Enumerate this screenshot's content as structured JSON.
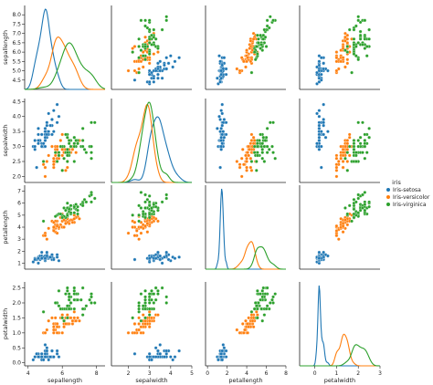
{
  "chart_data": {
    "type": "scatter",
    "variables": [
      {
        "name": "sepallength",
        "min": 4.0,
        "max": 8.5,
        "ticks": [
          4,
          6,
          8
        ],
        "row_ticks": [
          4.5,
          5.0,
          5.5,
          6.0,
          6.5,
          7.0,
          7.5,
          8.0
        ]
      },
      {
        "name": "sepalwidth",
        "min": 1.8,
        "max": 4.6,
        "ticks": [
          2,
          3,
          4,
          5
        ],
        "row_ticks": [
          2.0,
          2.5,
          3.0,
          3.5,
          4.0,
          4.5
        ]
      },
      {
        "name": "petallength",
        "min": 0.5,
        "max": 7.5,
        "ticks": [
          0,
          2,
          4,
          6,
          8
        ],
        "row_ticks": [
          1,
          2,
          3,
          4,
          5,
          6,
          7
        ]
      },
      {
        "name": "petalwidth",
        "min": -0.1,
        "max": 2.7,
        "ticks": [
          0,
          1,
          2,
          3
        ],
        "row_ticks": [
          0.0,
          0.5,
          1.0,
          1.5,
          2.0,
          2.5
        ]
      }
    ],
    "x_ranges": [
      [
        3.8,
        8.5
      ],
      [
        1.2,
        5.0
      ],
      [
        -0.2,
        8.0
      ],
      [
        -0.7,
        3.0
      ]
    ],
    "legend": {
      "title": "iris",
      "placement": "right",
      "entries": [
        "Iris-setosa",
        "Iris-versicolor",
        "Iris-virginica"
      ]
    },
    "colors": [
      "#1f77b4",
      "#ff7f0e",
      "#2ca02c"
    ],
    "series": [
      {
        "name": "Iris-setosa",
        "points": [
          [
            5.1,
            3.5,
            1.4,
            0.2
          ],
          [
            4.9,
            3.0,
            1.4,
            0.2
          ],
          [
            4.7,
            3.2,
            1.3,
            0.2
          ],
          [
            4.6,
            3.1,
            1.5,
            0.2
          ],
          [
            5.0,
            3.6,
            1.4,
            0.2
          ],
          [
            5.4,
            3.9,
            1.7,
            0.4
          ],
          [
            4.6,
            3.4,
            1.4,
            0.3
          ],
          [
            5.0,
            3.4,
            1.5,
            0.2
          ],
          [
            4.4,
            2.9,
            1.4,
            0.2
          ],
          [
            4.9,
            3.1,
            1.5,
            0.1
          ],
          [
            5.4,
            3.7,
            1.5,
            0.2
          ],
          [
            4.8,
            3.4,
            1.6,
            0.2
          ],
          [
            4.8,
            3.0,
            1.4,
            0.1
          ],
          [
            4.3,
            3.0,
            1.1,
            0.1
          ],
          [
            5.8,
            4.0,
            1.2,
            0.2
          ],
          [
            5.7,
            4.4,
            1.5,
            0.4
          ],
          [
            5.4,
            3.9,
            1.3,
            0.4
          ],
          [
            5.1,
            3.5,
            1.4,
            0.3
          ],
          [
            5.7,
            3.8,
            1.7,
            0.3
          ],
          [
            5.1,
            3.8,
            1.5,
            0.3
          ],
          [
            5.4,
            3.4,
            1.7,
            0.2
          ],
          [
            5.1,
            3.7,
            1.5,
            0.4
          ],
          [
            4.6,
            3.6,
            1.0,
            0.2
          ],
          [
            5.1,
            3.3,
            1.7,
            0.5
          ],
          [
            4.8,
            3.4,
            1.9,
            0.2
          ],
          [
            5.0,
            3.0,
            1.6,
            0.2
          ],
          [
            5.0,
            3.4,
            1.6,
            0.4
          ],
          [
            5.2,
            3.5,
            1.5,
            0.2
          ],
          [
            5.2,
            3.4,
            1.4,
            0.2
          ],
          [
            4.7,
            3.2,
            1.6,
            0.2
          ],
          [
            4.8,
            3.1,
            1.6,
            0.2
          ],
          [
            5.4,
            3.4,
            1.5,
            0.4
          ],
          [
            5.2,
            4.1,
            1.5,
            0.1
          ],
          [
            5.5,
            4.2,
            1.4,
            0.2
          ],
          [
            4.9,
            3.1,
            1.5,
            0.1
          ],
          [
            5.0,
            3.2,
            1.2,
            0.2
          ],
          [
            5.5,
            3.5,
            1.3,
            0.2
          ],
          [
            4.4,
            3.0,
            1.3,
            0.2
          ],
          [
            5.1,
            3.4,
            1.5,
            0.2
          ],
          [
            5.0,
            3.5,
            1.3,
            0.3
          ],
          [
            4.5,
            2.3,
            1.3,
            0.3
          ],
          [
            4.4,
            3.2,
            1.3,
            0.2
          ],
          [
            5.0,
            3.5,
            1.6,
            0.6
          ],
          [
            5.1,
            3.8,
            1.9,
            0.4
          ],
          [
            4.8,
            3.0,
            1.4,
            0.3
          ],
          [
            5.1,
            3.8,
            1.6,
            0.2
          ],
          [
            4.6,
            3.2,
            1.4,
            0.2
          ],
          [
            5.3,
            3.7,
            1.5,
            0.2
          ],
          [
            5.0,
            3.3,
            1.4,
            0.2
          ]
        ]
      },
      {
        "name": "Iris-versicolor",
        "points": [
          [
            7.0,
            3.2,
            4.7,
            1.4
          ],
          [
            6.4,
            3.2,
            4.5,
            1.5
          ],
          [
            6.9,
            3.1,
            4.9,
            1.5
          ],
          [
            5.5,
            2.3,
            4.0,
            1.3
          ],
          [
            6.5,
            2.8,
            4.6,
            1.5
          ],
          [
            5.7,
            2.8,
            4.5,
            1.3
          ],
          [
            6.3,
            3.3,
            4.7,
            1.6
          ],
          [
            4.9,
            2.4,
            3.3,
            1.0
          ],
          [
            6.6,
            2.9,
            4.6,
            1.3
          ],
          [
            5.2,
            2.7,
            3.9,
            1.4
          ],
          [
            5.0,
            2.0,
            3.5,
            1.0
          ],
          [
            5.9,
            3.0,
            4.2,
            1.5
          ],
          [
            6.0,
            2.2,
            4.0,
            1.0
          ],
          [
            6.1,
            2.9,
            4.7,
            1.4
          ],
          [
            5.6,
            2.9,
            3.6,
            1.3
          ],
          [
            6.7,
            3.1,
            4.4,
            1.4
          ],
          [
            5.6,
            3.0,
            4.5,
            1.5
          ],
          [
            5.8,
            2.7,
            4.1,
            1.0
          ],
          [
            6.2,
            2.2,
            4.5,
            1.5
          ],
          [
            5.6,
            2.5,
            3.9,
            1.1
          ],
          [
            5.9,
            3.2,
            4.8,
            1.8
          ],
          [
            6.1,
            2.8,
            4.0,
            1.3
          ],
          [
            6.3,
            2.5,
            4.9,
            1.5
          ],
          [
            6.1,
            2.8,
            4.7,
            1.2
          ],
          [
            6.4,
            2.9,
            4.3,
            1.3
          ],
          [
            6.6,
            3.0,
            4.4,
            1.4
          ],
          [
            6.8,
            2.8,
            4.8,
            1.4
          ],
          [
            6.7,
            3.0,
            5.0,
            1.7
          ],
          [
            6.0,
            2.9,
            4.5,
            1.5
          ],
          [
            5.7,
            2.6,
            3.5,
            1.0
          ],
          [
            5.5,
            2.4,
            3.8,
            1.1
          ],
          [
            5.5,
            2.4,
            3.7,
            1.0
          ],
          [
            5.8,
            2.7,
            3.9,
            1.2
          ],
          [
            6.0,
            2.7,
            5.1,
            1.6
          ],
          [
            5.4,
            3.0,
            4.5,
            1.5
          ],
          [
            6.0,
            3.4,
            4.5,
            1.6
          ],
          [
            6.7,
            3.1,
            4.7,
            1.5
          ],
          [
            6.3,
            2.3,
            4.4,
            1.3
          ],
          [
            5.6,
            3.0,
            4.1,
            1.3
          ],
          [
            5.5,
            2.5,
            4.0,
            1.3
          ],
          [
            5.5,
            2.6,
            4.4,
            1.2
          ],
          [
            6.1,
            3.0,
            4.6,
            1.4
          ],
          [
            5.8,
            2.6,
            4.0,
            1.2
          ],
          [
            5.0,
            2.3,
            3.3,
            1.0
          ],
          [
            5.6,
            2.7,
            4.2,
            1.3
          ],
          [
            5.7,
            3.0,
            4.2,
            1.2
          ],
          [
            5.7,
            2.9,
            4.2,
            1.3
          ],
          [
            6.2,
            2.9,
            4.3,
            1.3
          ],
          [
            5.1,
            2.5,
            3.0,
            1.1
          ],
          [
            5.7,
            2.8,
            4.1,
            1.3
          ]
        ]
      },
      {
        "name": "Iris-virginica",
        "points": [
          [
            6.3,
            3.3,
            6.0,
            2.5
          ],
          [
            5.8,
            2.7,
            5.1,
            1.9
          ],
          [
            7.1,
            3.0,
            5.9,
            2.1
          ],
          [
            6.3,
            2.9,
            5.6,
            1.8
          ],
          [
            6.5,
            3.0,
            5.8,
            2.2
          ],
          [
            7.6,
            3.0,
            6.6,
            2.1
          ],
          [
            4.9,
            2.5,
            4.5,
            1.7
          ],
          [
            7.3,
            2.9,
            6.3,
            1.8
          ],
          [
            6.7,
            2.5,
            5.8,
            1.8
          ],
          [
            7.2,
            3.6,
            6.1,
            2.5
          ],
          [
            6.5,
            3.2,
            5.1,
            2.0
          ],
          [
            6.4,
            2.7,
            5.3,
            1.9
          ],
          [
            6.8,
            3.0,
            5.5,
            2.1
          ],
          [
            5.7,
            2.5,
            5.0,
            2.0
          ],
          [
            5.8,
            2.8,
            5.1,
            2.4
          ],
          [
            6.4,
            3.2,
            5.3,
            2.3
          ],
          [
            6.5,
            3.0,
            5.5,
            1.8
          ],
          [
            7.7,
            3.8,
            6.7,
            2.2
          ],
          [
            7.7,
            2.6,
            6.9,
            2.3
          ],
          [
            6.0,
            2.2,
            5.0,
            1.5
          ],
          [
            6.9,
            3.2,
            5.7,
            2.3
          ],
          [
            5.6,
            2.8,
            4.9,
            2.0
          ],
          [
            7.7,
            2.8,
            6.7,
            2.0
          ],
          [
            6.3,
            2.7,
            4.9,
            1.8
          ],
          [
            6.7,
            3.3,
            5.7,
            2.1
          ],
          [
            7.2,
            3.2,
            6.0,
            1.8
          ],
          [
            6.2,
            2.8,
            4.8,
            1.8
          ],
          [
            6.1,
            3.0,
            4.9,
            1.8
          ],
          [
            6.4,
            2.8,
            5.6,
            2.1
          ],
          [
            7.2,
            3.0,
            5.8,
            1.6
          ],
          [
            7.4,
            2.8,
            6.1,
            1.9
          ],
          [
            7.9,
            3.8,
            6.4,
            2.0
          ],
          [
            6.4,
            2.8,
            5.6,
            2.2
          ],
          [
            6.3,
            2.8,
            5.1,
            1.5
          ],
          [
            6.1,
            2.6,
            5.6,
            1.4
          ],
          [
            7.7,
            3.0,
            6.1,
            2.3
          ],
          [
            6.3,
            3.4,
            5.6,
            2.4
          ],
          [
            6.4,
            3.1,
            5.5,
            1.8
          ],
          [
            6.0,
            3.0,
            4.8,
            1.8
          ],
          [
            6.9,
            3.1,
            5.4,
            2.1
          ],
          [
            6.7,
            3.1,
            5.6,
            2.4
          ],
          [
            6.9,
            3.1,
            5.1,
            2.3
          ],
          [
            5.8,
            2.7,
            5.1,
            1.9
          ],
          [
            6.8,
            3.2,
            5.9,
            2.3
          ],
          [
            6.7,
            3.3,
            5.7,
            2.5
          ],
          [
            6.7,
            3.0,
            5.2,
            2.3
          ],
          [
            6.3,
            2.5,
            5.0,
            1.9
          ],
          [
            6.5,
            3.0,
            5.2,
            2.0
          ],
          [
            6.2,
            3.4,
            5.4,
            2.3
          ],
          [
            5.9,
            3.0,
            5.1,
            1.8
          ]
        ]
      }
    ]
  }
}
